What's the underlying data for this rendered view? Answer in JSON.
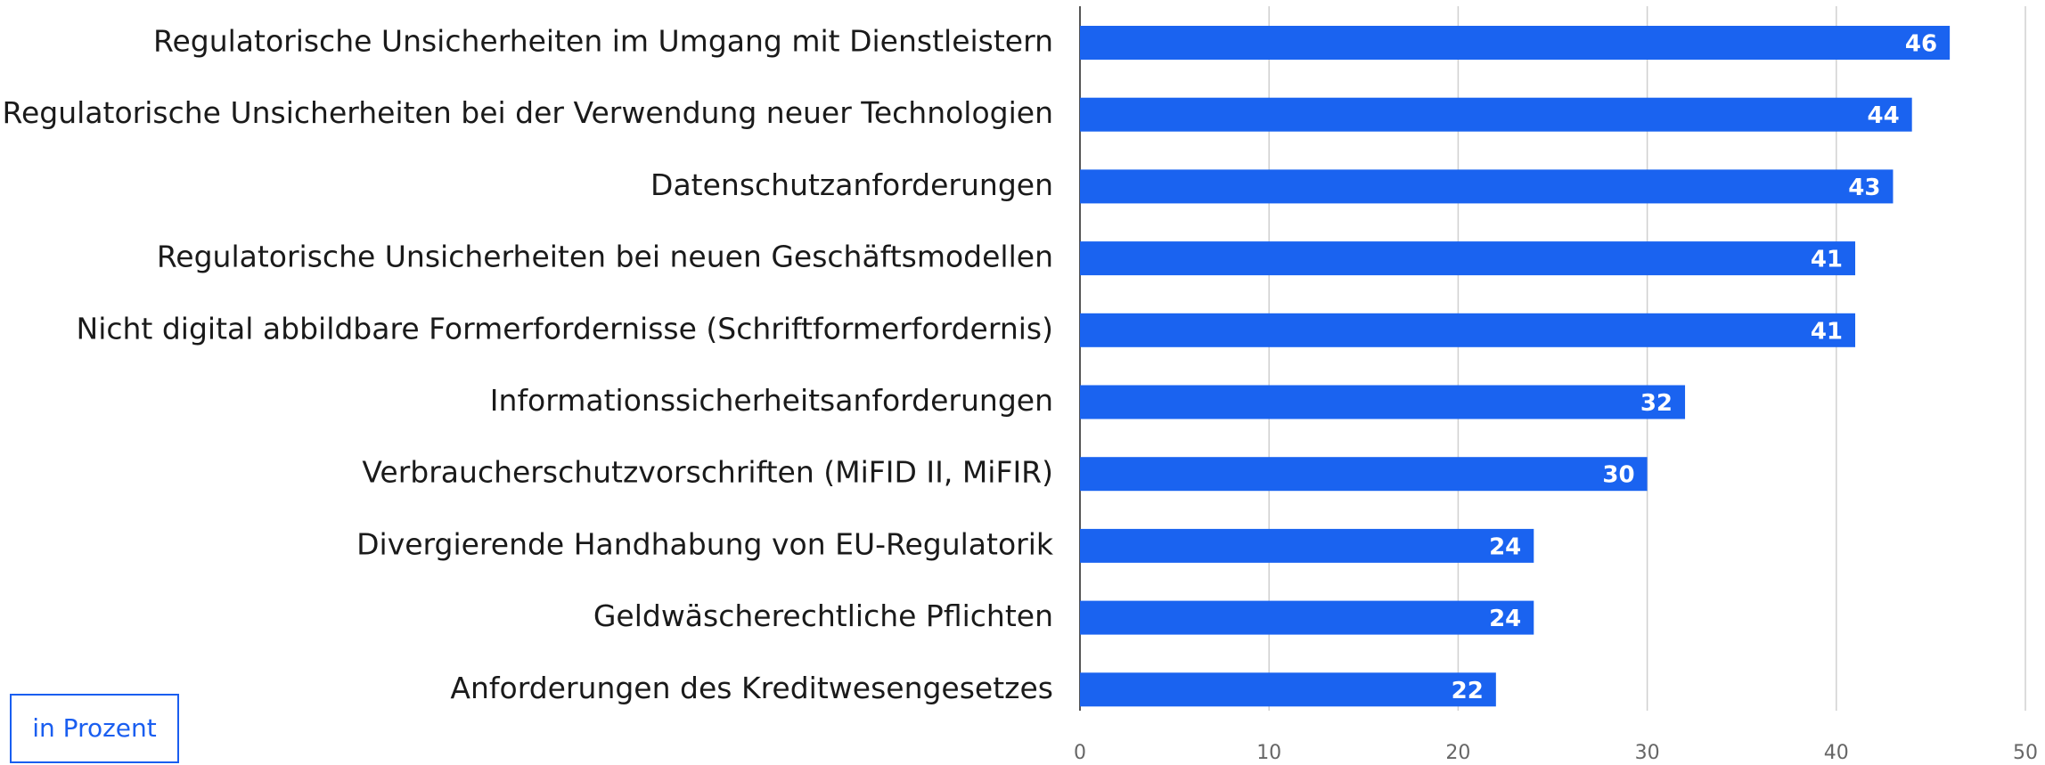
{
  "chart_data": {
    "type": "bar",
    "orientation": "horizontal",
    "categories": [
      "Regulatorische Unsicherheiten im Umgang mit Dienstleistern",
      "Regulatorische Unsicherheiten bei der Verwendung neuer Technologien",
      "Datenschutzanforderungen",
      "Regulatorische Unsicherheiten bei neuen Geschäftsmodellen",
      "Nicht digital abbildbare Formerfordernisse (Schriftformerfordernis)",
      "Informationssicherheitsanforderungen",
      "Verbraucherschutzvorschriften (MiFID  II, MiFIR)",
      "Divergierende Handhabung von EU-Regulatorik",
      "Geldwäscherechtliche Pflichten",
      "Anforderungen des Kreditwesengesetzes"
    ],
    "values": [
      46,
      44,
      43,
      41,
      41,
      32,
      30,
      24,
      24,
      22
    ],
    "color": "#1a63f0",
    "xlim": [
      0,
      50
    ],
    "xticks": [
      0,
      10,
      20,
      30,
      40,
      50
    ],
    "grid": true,
    "annotation": "in Prozent"
  }
}
